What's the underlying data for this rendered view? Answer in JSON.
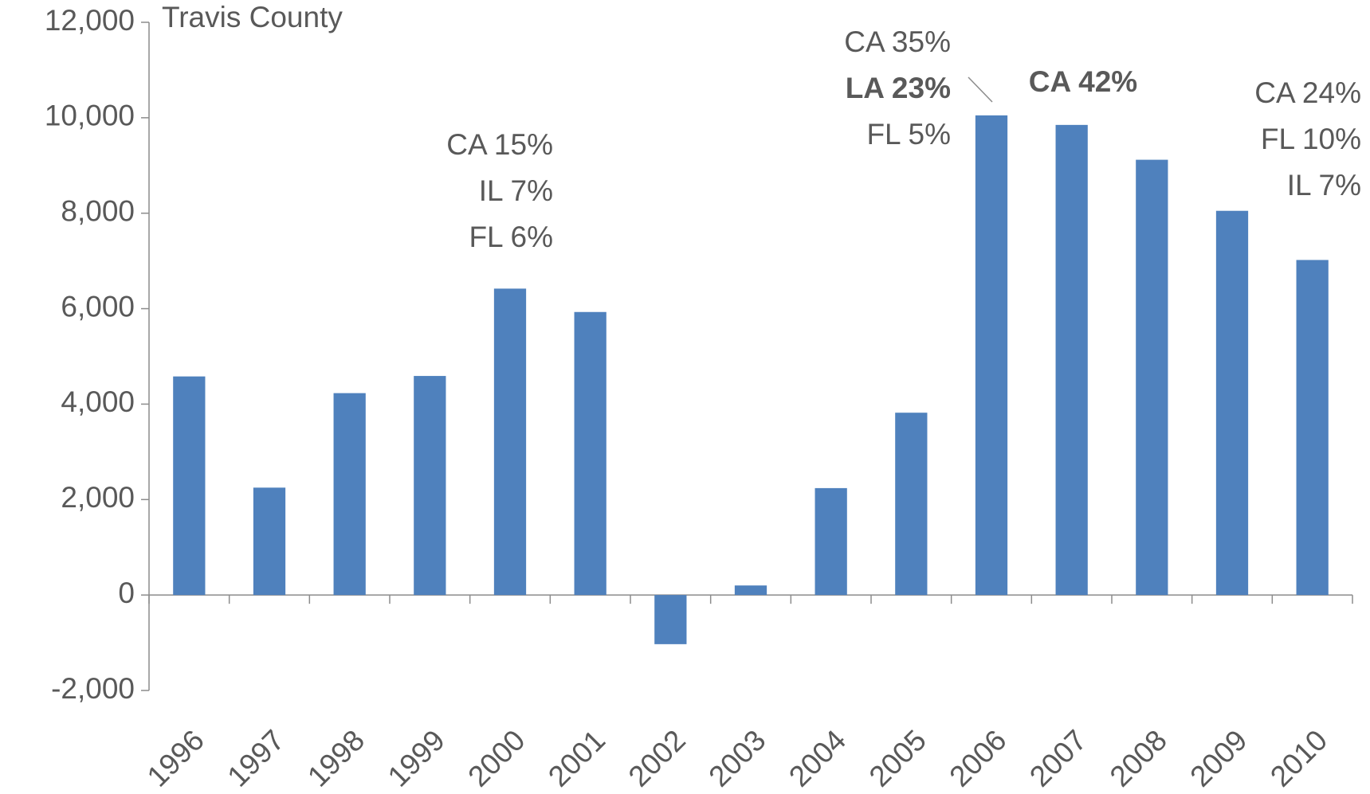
{
  "chart_data": {
    "type": "bar",
    "title": "Travis County",
    "categories": [
      "1996",
      "1997",
      "1998",
      "1999",
      "2000",
      "2001",
      "2002",
      "2003",
      "2004",
      "2005",
      "2006",
      "2007",
      "2008",
      "2009",
      "2010"
    ],
    "values": [
      4580,
      2250,
      4230,
      4590,
      6420,
      5930,
      -1030,
      200,
      2240,
      3820,
      10050,
      9850,
      9120,
      8050,
      7020
    ],
    "color": "#4f81bd",
    "ylim": [
      -2000,
      12000
    ],
    "yticks": [
      {
        "value": -2000,
        "label": "-2,000"
      },
      0,
      {
        "value": 2000,
        "label": "2,000"
      },
      {
        "value": 4000,
        "label": "4,000"
      },
      {
        "value": 6000,
        "label": "6,000"
      },
      {
        "value": 8000,
        "label": "8,000"
      },
      {
        "value": 10000,
        "label": "10,000"
      },
      {
        "value": 12000,
        "label": "12,000"
      }
    ],
    "grid": false,
    "annotations": [
      {
        "lines": [
          {
            "text": "CA 15%",
            "bold": false
          },
          {
            "text": "IL 7%",
            "bold": false
          },
          {
            "text": "FL 6%",
            "bold": false
          }
        ]
      },
      {
        "lines": [
          {
            "text": "CA 35%",
            "bold": false
          },
          {
            "text": "LA 23%",
            "bold": true
          },
          {
            "text": "FL 5%",
            "bold": false
          }
        ]
      },
      {
        "lines": [
          {
            "text": "CA 42%",
            "bold": true
          }
        ]
      },
      {
        "lines": [
          {
            "text": "CA 24%",
            "bold": false
          },
          {
            "text": "FL 10%",
            "bold": false
          },
          {
            "text": "IL 7%",
            "bold": false
          }
        ]
      }
    ]
  }
}
